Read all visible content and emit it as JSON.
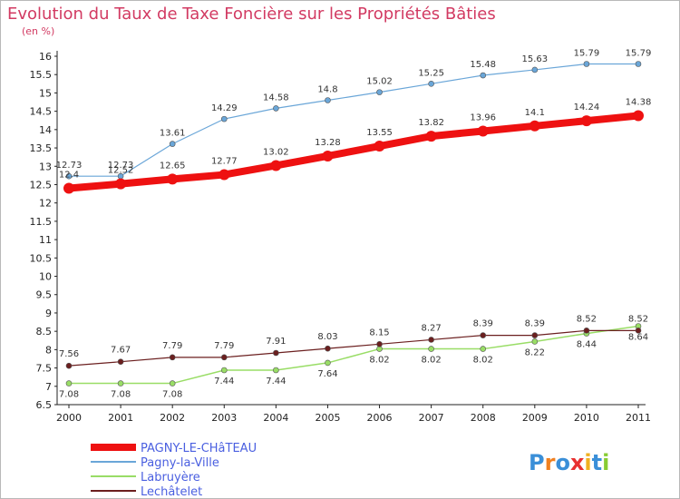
{
  "title": "Evolution du Taux de Taxe Foncière sur les Propriétés Bâties",
  "unit_label": "(en %)",
  "logo_text": "Proxiti",
  "chart_data": {
    "type": "line",
    "title": "Evolution du Taux de Taxe Foncière sur les Propriétés Bâties",
    "ylabel": "(en %)",
    "xlabel": "",
    "x": [
      2000,
      2001,
      2002,
      2003,
      2004,
      2005,
      2006,
      2007,
      2008,
      2009,
      2010,
      2011
    ],
    "ylim": [
      6.5,
      16
    ],
    "ytick_step": 0.5,
    "ytick_labels": [
      "6.5",
      "7",
      "7.5",
      "8",
      "8.5",
      "9",
      "9.5",
      "10",
      "10.5",
      "11",
      "11.5",
      "12",
      "12.5",
      "13",
      "13.5",
      "14",
      "14.5",
      "15",
      "15.5",
      "16"
    ],
    "grid": false,
    "legend_position": "bottom-left",
    "series": [
      {
        "name": "PAGNY-LE-CHâTEAU",
        "color": "#ee1111",
        "values": [
          12.4,
          12.52,
          12.65,
          12.77,
          13.02,
          13.28,
          13.55,
          13.82,
          13.96,
          14.1,
          14.24,
          14.38
        ],
        "labels": [
          "12.4",
          "12.52",
          "12.65",
          "12.77",
          "13.02",
          "13.28",
          "13.55",
          "13.82",
          "13.96",
          "14.1",
          "14.24",
          "14.38"
        ]
      },
      {
        "name": "Pagny-la-Ville",
        "color": "#6aa6d8",
        "values": [
          12.73,
          12.73,
          13.61,
          14.29,
          14.58,
          14.8,
          15.02,
          15.25,
          15.48,
          15.63,
          15.79,
          15.79
        ],
        "labels": [
          "12.73",
          "12.73",
          "13.61",
          "14.29",
          "14.58",
          "14.8",
          "15.02",
          "15.25",
          "15.48",
          "15.63",
          "15.79",
          "15.79"
        ]
      },
      {
        "name": "Labruyère",
        "color": "#99dd66",
        "values": [
          7.08,
          7.08,
          7.08,
          7.44,
          7.44,
          7.64,
          8.02,
          8.02,
          8.02,
          8.22,
          8.44,
          8.64
        ],
        "labels": [
          "7.08",
          "7.08",
          "7.08",
          "7.44",
          "7.44",
          "7.64",
          "8.02",
          "8.02",
          "8.02",
          "8.22",
          "8.44",
          "8.64"
        ]
      },
      {
        "name": "Lechâtelet",
        "color": "#6b1f1f",
        "values": [
          7.56,
          7.67,
          7.79,
          7.79,
          7.91,
          8.03,
          8.15,
          8.27,
          8.39,
          8.39,
          8.52,
          8.52
        ],
        "labels": [
          "7.56",
          "7.67",
          "7.79",
          "7.79",
          "7.91",
          "8.03",
          "8.15",
          "8.27",
          "8.39",
          "8.39",
          "8.52",
          "8.52"
        ]
      }
    ]
  }
}
